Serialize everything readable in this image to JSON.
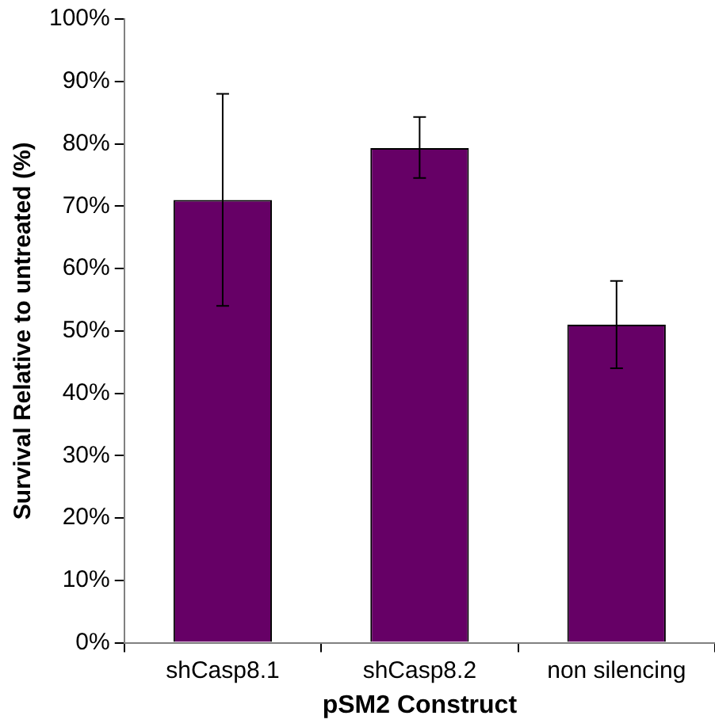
{
  "chart_data": {
    "type": "bar",
    "xlabel": "pSM2 Construct",
    "ylabel": "Survival Relative to untreated (%)",
    "categories": [
      "shCasp8.1",
      "shCasp8.2",
      "non silencing"
    ],
    "values": [
      71,
      79.3,
      51
    ],
    "errors": [
      [
        54,
        88
      ],
      [
        74.5,
        84.3
      ],
      [
        44,
        58
      ]
    ],
    "color": "#660066",
    "ylim": [
      0,
      100
    ],
    "yticks": [
      {
        "value": 0,
        "label": "0%"
      },
      {
        "value": 10,
        "label": "10%"
      },
      {
        "value": 20,
        "label": "20%"
      },
      {
        "value": 30,
        "label": "30%"
      },
      {
        "value": 40,
        "label": "40%"
      },
      {
        "value": 50,
        "label": "50%"
      },
      {
        "value": 60,
        "label": "60%"
      },
      {
        "value": 70,
        "label": "70%"
      },
      {
        "value": 80,
        "label": "80%"
      },
      {
        "value": 90,
        "label": "90%"
      },
      {
        "value": 100,
        "label": "100%"
      }
    ],
    "grid": false,
    "legend": false
  }
}
